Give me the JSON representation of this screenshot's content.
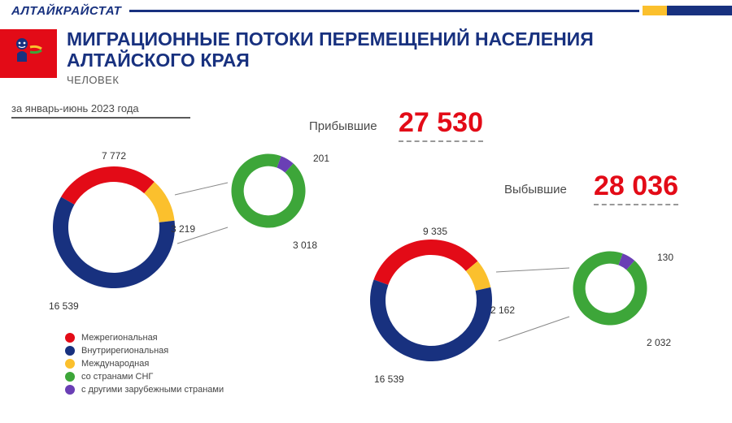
{
  "brand": "АЛТАЙКРАЙСТАТ",
  "title": "МИГРАЦИОННЫЕ ПОТОКИ ПЕРЕМЕЩЕНИЙ НАСЕЛЕНИЯ АЛТАЙСКОГО КРАЯ",
  "subtitle": "ЧЕЛОВЕК",
  "period": "за январь-июнь 2023 года",
  "colors": {
    "blue": "#18317f",
    "red": "#e30b17",
    "yellow": "#fbc02d",
    "green": "#3da639",
    "purple": "#6a3fb5",
    "grey_text": "#4a4a4a",
    "connector": "#888888",
    "background": "#ffffff"
  },
  "legend": [
    {
      "color": "#e30b17",
      "label": "Межрегиональная"
    },
    {
      "color": "#18317f",
      "label": "Внутрирегиональная"
    },
    {
      "color": "#fbc02d",
      "label": "Международная"
    },
    {
      "color": "#3da639",
      "label": "со странами СНГ"
    },
    {
      "color": "#6a3fb5",
      "label": "с другими зарубежными странами"
    }
  ],
  "arrivals": {
    "title": "Прибывшие",
    "total_display": "27 530",
    "main_ring": {
      "type": "donut",
      "outer_r": 75,
      "inner_r": 56,
      "segments": [
        {
          "label": "Межрегиональная",
          "value": 7772,
          "display": "7 772",
          "color": "#e30b17"
        },
        {
          "label": "Международная",
          "value": 3219,
          "display": "3 219",
          "color": "#fbc02d"
        },
        {
          "label": "Внутрирегиональная",
          "value": 16539,
          "display": "16 539",
          "color": "#18317f"
        }
      ]
    },
    "sub_ring": {
      "type": "donut",
      "outer_r": 48,
      "inner_r": 32,
      "segments": [
        {
          "label": "с другими зарубежными странами",
          "value": 201,
          "display": "201",
          "color": "#6a3fb5"
        },
        {
          "label": "со странами СНГ",
          "value": 3018,
          "display": "3 018",
          "color": "#3da639"
        }
      ]
    }
  },
  "departures": {
    "title": "Выбывшие",
    "total_display": "28 036",
    "main_ring": {
      "type": "donut",
      "outer_r": 75,
      "inner_r": 56,
      "segments": [
        {
          "label": "Межрегиональная",
          "value": 9335,
          "display": "9 335",
          "color": "#e30b17"
        },
        {
          "label": "Международная",
          "value": 2162,
          "display": "2 162",
          "color": "#fbc02d"
        },
        {
          "label": "Внутрирегиональная",
          "value": 16539,
          "display": "16 539",
          "color": "#18317f"
        }
      ]
    },
    "sub_ring": {
      "type": "donut",
      "outer_r": 48,
      "inner_r": 32,
      "segments": [
        {
          "label": "с другими зарубежными странами",
          "value": 130,
          "display": "130",
          "color": "#6a3fb5"
        },
        {
          "label": "со странами СНГ",
          "value": 2032,
          "display": "2 032",
          "color": "#3da639"
        }
      ]
    }
  },
  "font": {
    "big_num_pt": 34,
    "title_pt": 23,
    "label_pt": 12,
    "legend_pt": 11
  }
}
